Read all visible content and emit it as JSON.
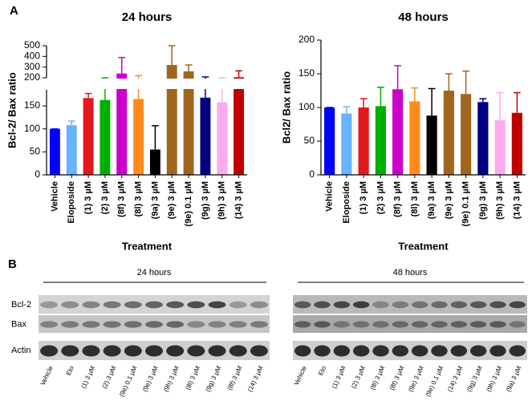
{
  "chart_data": [
    {
      "type": "bar",
      "title": "24 hours",
      "ylabel": "Bcl-2/ Bax ratio",
      "xlabel": "Treatment",
      "categories": [
        "Vehicle",
        "Eloposide",
        "(1) 3 µM",
        "(2) 3 µM",
        "(8f) 3 µM",
        "(8l) 3 µM",
        "(9a) 3 µM",
        "(9e) 3 µM",
        "(9e) 0.1 µM",
        "(9g) 3 µM",
        "(9h) 3 µM",
        "(14) 3 µM"
      ],
      "values": [
        100,
        108,
        167,
        163,
        240,
        165,
        55,
        320,
        260,
        168,
        158,
        205
      ],
      "errors": [
        0,
        9,
        10,
        37,
        150,
        55,
        52,
        180,
        60,
        40,
        42,
        60
      ],
      "colors": [
        "#0000ff",
        "#66b3ff",
        "#e31a1c",
        "#00b000",
        "#cc00cc",
        "#ff8c1a",
        "#000000",
        "#a0661e",
        "#a0661e",
        "#000080",
        "#ffaaee",
        "#c00000"
      ],
      "ylim": [
        0,
        500
      ],
      "yticks": [
        0,
        50,
        100,
        150,
        200,
        300,
        400,
        500
      ],
      "axis_break": [
        185,
        200
      ]
    },
    {
      "type": "bar",
      "title": "48 hours",
      "ylabel": "Bcl2/ Bax ratio",
      "xlabel": "Treatment",
      "categories": [
        "Vehicle",
        "Eloposide",
        "(1) 3 µM",
        "(2) 3 µM",
        "(8f) 3 µM",
        "(8l) 3 µM",
        "(9a) 3 µM",
        "(9e) 3 µM",
        "(9e) 0.1 µM",
        "(9g) 3 µM",
        "(9h) 3 µM",
        "(14) 3 µM"
      ],
      "values": [
        100,
        91,
        100,
        102,
        127,
        109,
        88,
        125,
        120,
        108,
        81,
        92
      ],
      "errors": [
        0,
        10,
        13,
        28,
        35,
        20,
        40,
        25,
        34,
        5,
        41,
        30
      ],
      "colors": [
        "#0000ff",
        "#66b3ff",
        "#e31a1c",
        "#00b000",
        "#cc00cc",
        "#ff8c1a",
        "#000000",
        "#a0661e",
        "#a0661e",
        "#000080",
        "#ffaaee",
        "#c00000"
      ],
      "ylim": [
        0,
        200
      ],
      "yticks": [
        0,
        50,
        100,
        150,
        200
      ]
    }
  ],
  "panel_labels": [
    "A",
    "B"
  ],
  "blot": {
    "rows": [
      "Bcl-2",
      "Bax",
      "Actin"
    ],
    "groups": [
      {
        "title": "24 hours",
        "lanes": [
          "Vehicle",
          "Eto",
          "(1) 3 µM",
          "(2) 3 µM",
          "(9e) 0.1 µM",
          "(9e) 3 µM",
          "(9h) 3 µM",
          "(8l) 3 µM",
          "(9g) 3 µM",
          "(8f) 3 µM",
          "(14) 3 µM"
        ]
      },
      {
        "title": "48 hours",
        "lanes": [
          "Vehicle",
          "Eto",
          "(1) 3 µM",
          "(2) 3 µM",
          "(8l) 3 µM",
          "(8f) 3 µM",
          "(9e) 3 µM",
          "(9e) 0.1 µM",
          "(14) 3 µM",
          "(9g) 3 µM",
          "(9h) 3 µM",
          "(9a) 3 µM"
        ]
      }
    ]
  }
}
